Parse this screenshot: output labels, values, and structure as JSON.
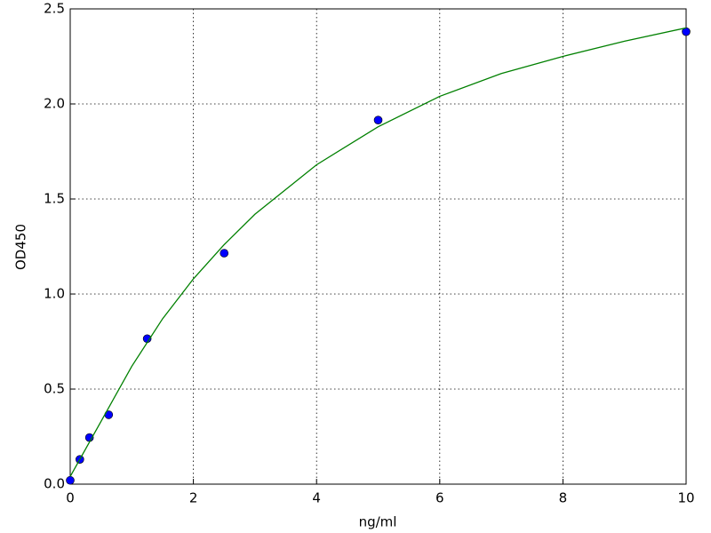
{
  "chart_data": {
    "type": "scatter",
    "x_label": "ng/ml",
    "y_label": "OD450",
    "xlim": [
      0,
      10
    ],
    "ylim": [
      0,
      2.5
    ],
    "xticks": [
      0,
      2,
      4,
      6,
      8,
      10
    ],
    "yticks": [
      {
        "value": 0,
        "label": "0.0"
      },
      0.5,
      {
        "value": 1,
        "label": "1.0"
      },
      1.5,
      {
        "value": 2,
        "label": "2.0"
      },
      2.5
    ],
    "grid": true,
    "series": [
      {
        "style": "points",
        "color": "#0000ff",
        "x": [
          0,
          0.156,
          0.3125,
          0.625,
          1.25,
          2.5,
          5,
          10
        ],
        "values": [
          0.02,
          0.13,
          0.245,
          0.365,
          0.765,
          1.215,
          1.915,
          2.38
        ]
      },
      {
        "style": "line",
        "color": "#008000",
        "x": [
          0,
          0.5,
          1,
          1.5,
          2,
          2.5,
          3,
          4,
          5,
          6,
          7,
          8,
          9,
          10
        ],
        "values": [
          0.04,
          0.33,
          0.62,
          0.87,
          1.08,
          1.26,
          1.42,
          1.68,
          1.88,
          2.04,
          2.16,
          2.25,
          2.33,
          2.4
        ]
      }
    ]
  }
}
